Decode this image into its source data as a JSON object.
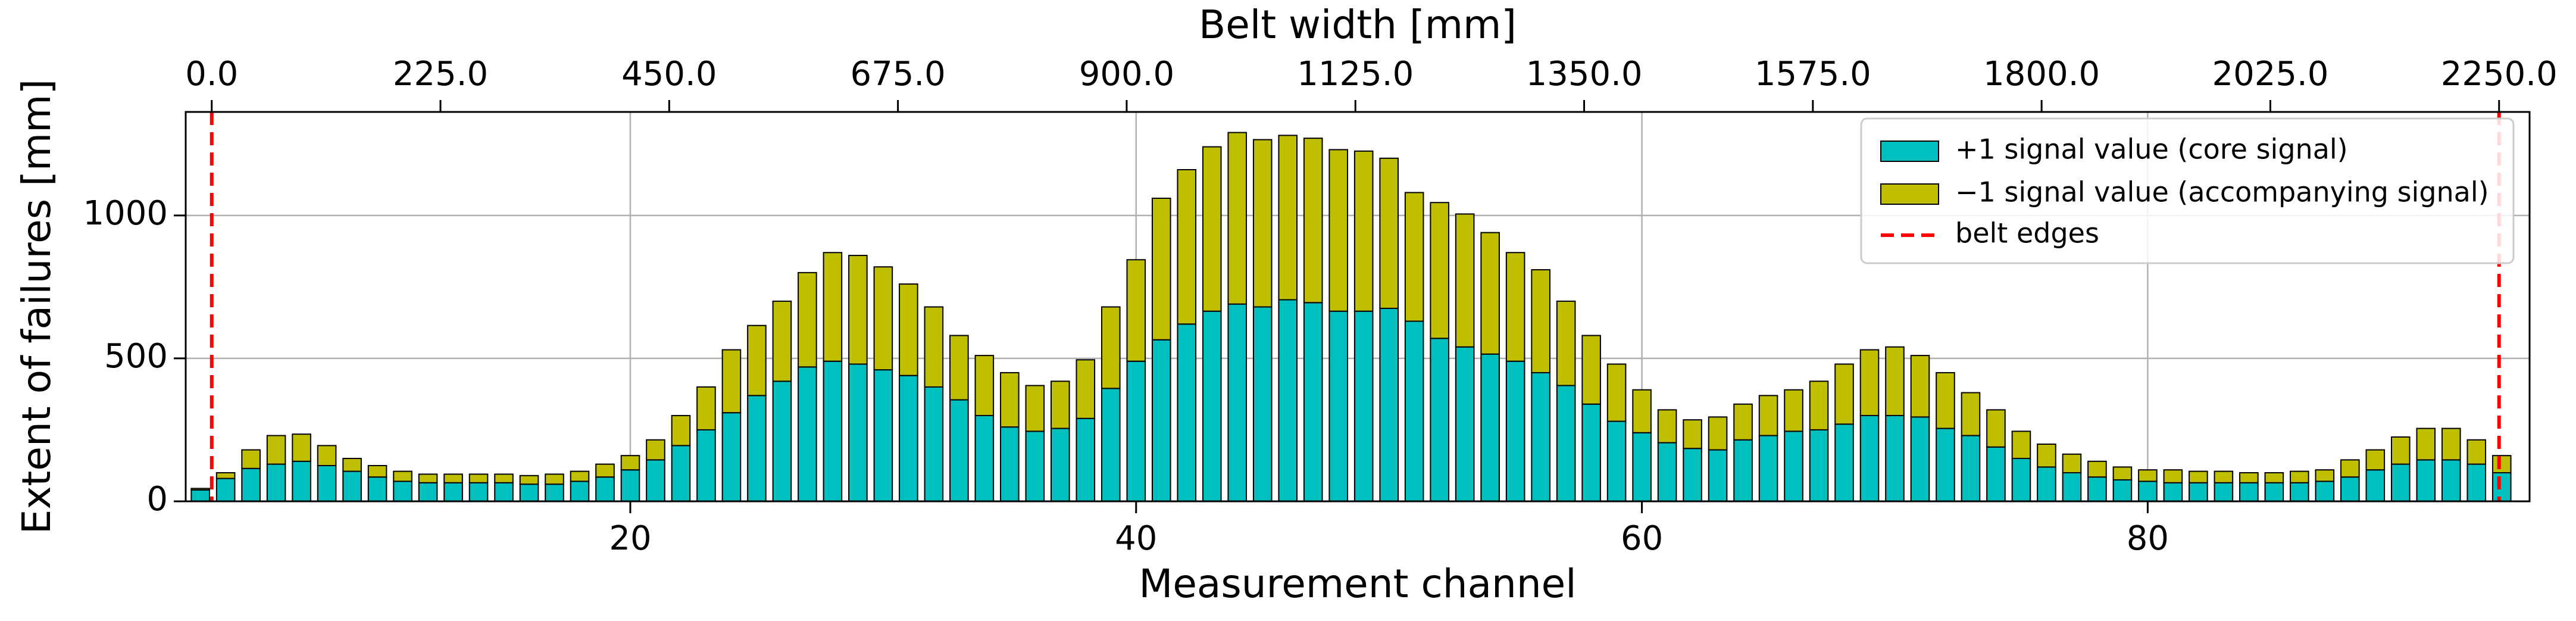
{
  "chart_data": {
    "type": "stacked_bar",
    "xlabel": "Measurement channel",
    "ylabel": "Extent of failures [mm]",
    "x2label": "Belt width [mm]",
    "x": [
      3,
      4,
      5,
      6,
      7,
      8,
      9,
      10,
      11,
      12,
      13,
      14,
      15,
      16,
      17,
      18,
      19,
      20,
      21,
      22,
      23,
      24,
      25,
      26,
      27,
      28,
      29,
      30,
      31,
      32,
      33,
      34,
      35,
      36,
      37,
      38,
      39,
      40,
      41,
      42,
      43,
      44,
      45,
      46,
      47,
      48,
      49,
      50,
      51,
      52,
      53,
      54,
      55,
      56,
      57,
      58,
      59,
      60,
      61,
      62,
      63,
      64,
      65,
      66,
      67,
      68,
      69,
      70,
      71,
      72,
      73,
      74,
      75,
      76,
      77,
      78,
      79,
      80,
      81,
      82,
      83,
      84,
      85,
      86,
      87,
      88,
      89,
      90,
      91,
      92,
      93,
      94
    ],
    "series": [
      {
        "name": "+1 signal value (core signal)",
        "color": "#00bfbf",
        "values": [
          40,
          80,
          115,
          130,
          140,
          125,
          105,
          85,
          70,
          65,
          65,
          65,
          65,
          60,
          60,
          70,
          85,
          110,
          145,
          195,
          250,
          310,
          370,
          420,
          470,
          490,
          480,
          460,
          440,
          400,
          355,
          300,
          260,
          245,
          255,
          290,
          395,
          490,
          565,
          620,
          665,
          690,
          680,
          705,
          695,
          665,
          665,
          675,
          630,
          570,
          540,
          515,
          490,
          450,
          405,
          340,
          280,
          240,
          205,
          185,
          180,
          215,
          230,
          245,
          250,
          270,
          300,
          300,
          295,
          255,
          230,
          190,
          150,
          120,
          100,
          85,
          75,
          70,
          65,
          65,
          65,
          65,
          65,
          65,
          70,
          85,
          110,
          130,
          145,
          145,
          130,
          100
        ]
      },
      {
        "name": "−1 signal value (accompanying signal)",
        "color": "#bfbf00",
        "values": [
          5,
          20,
          65,
          100,
          95,
          70,
          45,
          40,
          35,
          30,
          30,
          30,
          30,
          30,
          35,
          35,
          45,
          50,
          70,
          105,
          150,
          220,
          245,
          280,
          330,
          380,
          380,
          360,
          320,
          280,
          225,
          210,
          190,
          160,
          165,
          205,
          285,
          355,
          495,
          540,
          575,
          600,
          585,
          575,
          575,
          565,
          560,
          525,
          450,
          475,
          465,
          425,
          380,
          360,
          295,
          240,
          200,
          150,
          115,
          100,
          115,
          125,
          140,
          145,
          170,
          210,
          230,
          240,
          215,
          195,
          150,
          130,
          95,
          80,
          65,
          55,
          45,
          40,
          45,
          40,
          40,
          35,
          35,
          40,
          40,
          60,
          70,
          95,
          110,
          110,
          85,
          60
        ]
      }
    ],
    "edges": {
      "name": "belt edges",
      "color": "#ff0000",
      "x2": [
        0,
        2250
      ]
    },
    "xlim": [
      2.42,
      95.1
    ],
    "xticks": [
      20,
      40,
      60,
      80
    ],
    "x2lim": [
      -25.6,
      2280
    ],
    "x2ticks": [
      {
        "value": 0,
        "label": "0.0"
      },
      {
        "value": 225,
        "label": "225.0"
      },
      {
        "value": 450,
        "label": "450.0"
      },
      {
        "value": 675,
        "label": "675.0"
      },
      {
        "value": 900,
        "label": "900.0"
      },
      {
        "value": 1125,
        "label": "1125.0"
      },
      {
        "value": 1350,
        "label": "1350.0"
      },
      {
        "value": 1575,
        "label": "1575.0"
      },
      {
        "value": 1800,
        "label": "1800.0"
      },
      {
        "value": 2025,
        "label": "2025.0"
      },
      {
        "value": 2250,
        "label": "2250.0"
      }
    ],
    "ylim": [
      0,
      1362
    ],
    "yticks": [
      0,
      500,
      1000
    ],
    "grid": true,
    "legend": "upper right"
  }
}
